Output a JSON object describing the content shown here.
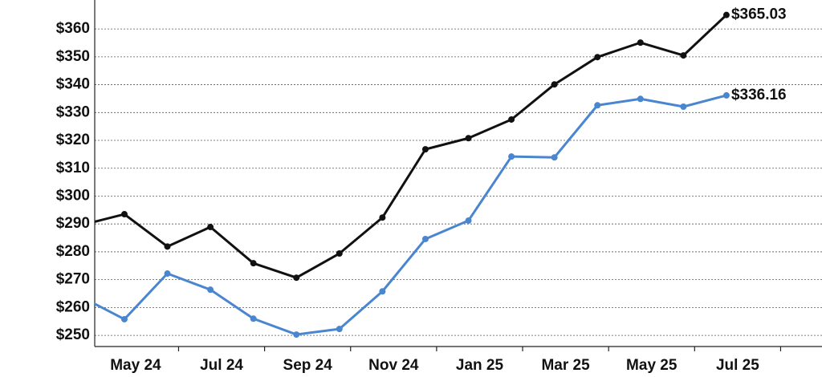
{
  "chart_data": {
    "type": "line",
    "categories": [
      null,
      "May 24",
      null,
      "Jul 24",
      null,
      "Sep 24",
      null,
      "Nov 24",
      null,
      "Jan 25",
      null,
      "Mar 25",
      null,
      "May 25",
      null,
      "Jul 25"
    ],
    "series": [
      {
        "color": "#111111",
        "values": [
          289.6,
          293.5,
          281.9,
          288.9,
          275.9,
          270.7,
          279.4,
          292.3,
          316.8,
          320.8,
          327.5,
          340.1,
          349.9,
          355.1,
          350.5,
          365.03
        ],
        "value_labels": [
          null,
          null,
          null,
          null,
          null,
          null,
          null,
          null,
          null,
          null,
          null,
          null,
          null,
          null,
          null,
          "$365.03"
        ]
      },
      {
        "color": "#4a86d0",
        "values": [
          263.8,
          255.8,
          272.2,
          266.4,
          256.0,
          250.3,
          252.3,
          265.8,
          284.6,
          291.2,
          314.2,
          313.9,
          332.6,
          334.9,
          332.1,
          336.16
        ],
        "value_labels": [
          null,
          null,
          null,
          null,
          null,
          null,
          null,
          null,
          null,
          null,
          null,
          null,
          null,
          null,
          null,
          "$336.16"
        ]
      }
    ],
    "ylim": [
      246,
      370.4
    ],
    "yticks": [
      {
        "value": 250,
        "label": "$250"
      },
      {
        "value": 260,
        "label": "$260"
      },
      {
        "value": 270,
        "label": "$270"
      },
      {
        "value": 280,
        "label": "$280"
      },
      {
        "value": 290,
        "label": "$290"
      },
      {
        "value": 300,
        "label": "$300"
      },
      {
        "value": 310,
        "label": "$310"
      },
      {
        "value": 320,
        "label": "$320"
      },
      {
        "value": 330,
        "label": "$330"
      },
      {
        "value": 340,
        "label": "$340"
      },
      {
        "value": 350,
        "label": "$350"
      },
      {
        "value": 360,
        "label": "$360"
      }
    ],
    "grid": true
  }
}
